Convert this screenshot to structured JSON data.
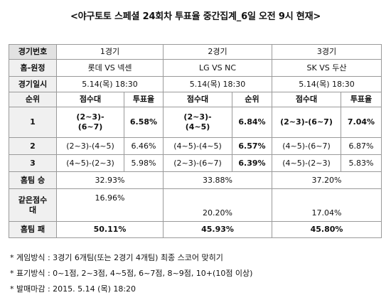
{
  "title": "<야구토토 스페셜 24회차 투표율 중간집계_6일 오전 9시 현재>",
  "rows": {
    "game_no": {
      "label": "경기번호",
      "g1": "1경기",
      "g2": "2경기",
      "g3": "3경기"
    },
    "home_away": {
      "label": "홈-원정",
      "g1": "롯데 VS 넥센",
      "g2": "LG VS NC",
      "g3": "SK VS 두산"
    },
    "date": {
      "label": "경기일시",
      "g1": "5.14(목) 18:30",
      "g2": "5.14(목) 18:30",
      "g3": "5.14(목) 18:30"
    },
    "rank_head": {
      "label": "순위",
      "score_head": "점수대",
      "rate_head": "투표율",
      "g2_rate_head": "순위"
    },
    "rank1": {
      "rank": "1",
      "g1_score_l1": "(2~3)-",
      "g1_score_l2": "(6~7)",
      "g1_rate": "6.58%",
      "g2_score_l1": "(2~3)-",
      "g2_score_l2": "(4~5)",
      "g2_rate": "6.84%",
      "g3_score": "(2~3)-(6~7)",
      "g3_rate": "7.04%"
    },
    "rank2": {
      "rank": "2",
      "g1_score": "(2~3)-(4~5)",
      "g1_rate": "6.46%",
      "g2_score": "(4~5)-(4~5)",
      "g2_rate": "6.57%",
      "g3_score": "(4~5)-(6~7)",
      "g3_rate": "6.87%"
    },
    "rank3": {
      "rank": "3",
      "g1_score": "(4~5)-(2~3)",
      "g1_rate": "5.98%",
      "g2_score": "(2~3)-(6~7)",
      "g2_rate": "6.39%",
      "g3_score": "(4~5)-(2~3)",
      "g3_rate": "5.83%"
    },
    "home_win": {
      "label": "홈팀 승",
      "g1": "32.93%",
      "g2": "33.88%",
      "g3": "37.20%"
    },
    "draw": {
      "label_l1": "같은점수",
      "label_l2": "대",
      "g1": "16.96%",
      "g2": "20.20%",
      "g3": "17.04%"
    },
    "home_loss": {
      "label": "홈팀 패",
      "g1": "50.11%",
      "g2": "45.93%",
      "g3": "45.80%"
    }
  },
  "notes": [
    "*  게임방식 : 3경기 6개팀(또는 2경기 4개팀) 최종 스코어 맞히기",
    "*  표기방식 : 0~1점, 2~3점, 4~5점, 6~7점, 8~9점, 10+(10점 이상)",
    "*  발매마감 : 2015. 5.14 (목) 18:20"
  ]
}
